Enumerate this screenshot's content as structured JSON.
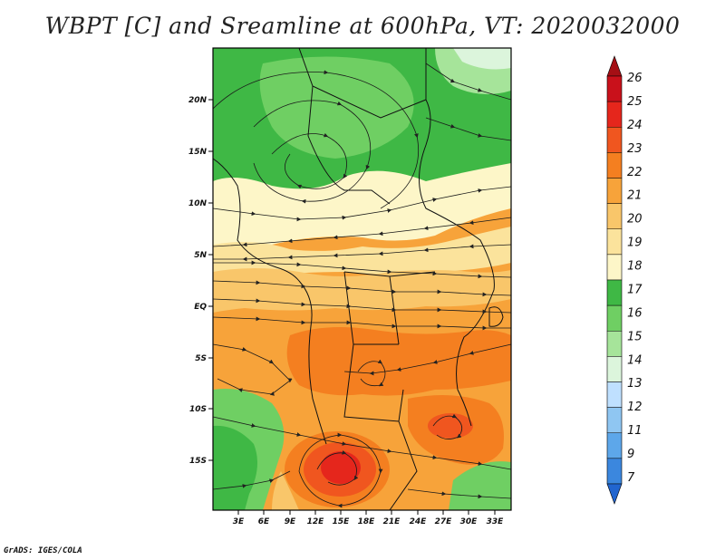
{
  "title": "WBPT [C] and Sreamline at 600hPa, VT: 2020032000",
  "credit": "GrADS: IGES/COLA",
  "map": {
    "variable": "WBPT [C]",
    "level": "600hPa",
    "valid_time": "2020032000",
    "lat_labels": [
      "20N",
      "15N",
      "10N",
      "5N",
      "EQ",
      "5S",
      "10S",
      "15S"
    ],
    "lon_labels": [
      "3E",
      "6E",
      "9E",
      "12E",
      "15E",
      "18E",
      "21E",
      "24E",
      "27E",
      "30E",
      "33E"
    ],
    "lon_range": [
      0,
      35
    ],
    "lat_range": [
      -20,
      25
    ]
  },
  "colorbar": {
    "levels": [
      "26",
      "25",
      "24",
      "23",
      "22",
      "21",
      "20",
      "19",
      "18",
      "17",
      "16",
      "15",
      "14",
      "13",
      "12",
      "11",
      "9",
      "7"
    ],
    "colors": [
      "#a50f15",
      "#c9111b",
      "#e5261c",
      "#f0561f",
      "#f47f20",
      "#f7a33a",
      "#f9c66a",
      "#fbe39c",
      "#fdf6c8",
      "#3fb845",
      "#6fcf63",
      "#a6e49a",
      "#dcf5dc",
      "#bfe0ff",
      "#8fc6f2",
      "#5da7ea",
      "#3b87de",
      "#2165cf"
    ]
  }
}
